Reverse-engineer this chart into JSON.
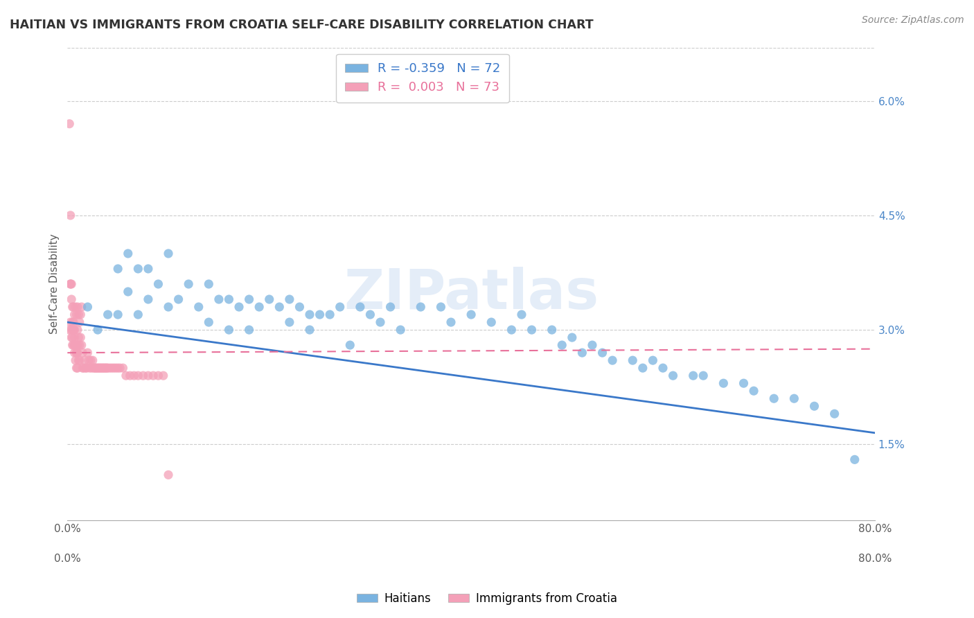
{
  "title": "HAITIAN VS IMMIGRANTS FROM CROATIA SELF-CARE DISABILITY CORRELATION CHART",
  "source": "Source: ZipAtlas.com",
  "ylabel": "Self-Care Disability",
  "right_yticks": [
    0.015,
    0.03,
    0.045,
    0.06
  ],
  "right_yticklabels": [
    "1.5%",
    "3.0%",
    "4.5%",
    "6.0%"
  ],
  "xlim": [
    0.0,
    0.8
  ],
  "ylim": [
    0.005,
    0.067
  ],
  "xticks": [
    0.0,
    0.1,
    0.2,
    0.3,
    0.4,
    0.5,
    0.6,
    0.7,
    0.8
  ],
  "xticklabels": [
    "0.0%",
    "",
    "",
    "",
    "",
    "",
    "",
    "",
    "80.0%"
  ],
  "legend_R_blue": "-0.359",
  "legend_N_blue": "72",
  "legend_R_pink": "0.003",
  "legend_N_pink": "73",
  "blue_color": "#7ab3e0",
  "pink_color": "#f4a0b8",
  "trend_blue_color": "#3a78c9",
  "trend_pink_color": "#e8709a",
  "watermark": "ZIPatlas",
  "blue_scatter_x": [
    0.02,
    0.03,
    0.04,
    0.05,
    0.05,
    0.06,
    0.06,
    0.07,
    0.07,
    0.08,
    0.08,
    0.09,
    0.1,
    0.1,
    0.11,
    0.12,
    0.13,
    0.14,
    0.14,
    0.15,
    0.16,
    0.16,
    0.17,
    0.18,
    0.18,
    0.19,
    0.2,
    0.21,
    0.22,
    0.22,
    0.23,
    0.24,
    0.24,
    0.25,
    0.26,
    0.27,
    0.28,
    0.29,
    0.3,
    0.31,
    0.32,
    0.33,
    0.35,
    0.37,
    0.38,
    0.4,
    0.42,
    0.44,
    0.45,
    0.46,
    0.48,
    0.49,
    0.5,
    0.51,
    0.52,
    0.53,
    0.54,
    0.56,
    0.57,
    0.58,
    0.59,
    0.6,
    0.62,
    0.63,
    0.65,
    0.67,
    0.68,
    0.7,
    0.72,
    0.74,
    0.76,
    0.78
  ],
  "blue_scatter_y": [
    0.033,
    0.03,
    0.032,
    0.038,
    0.032,
    0.04,
    0.035,
    0.038,
    0.032,
    0.038,
    0.034,
    0.036,
    0.04,
    0.033,
    0.034,
    0.036,
    0.033,
    0.036,
    0.031,
    0.034,
    0.034,
    0.03,
    0.033,
    0.034,
    0.03,
    0.033,
    0.034,
    0.033,
    0.034,
    0.031,
    0.033,
    0.032,
    0.03,
    0.032,
    0.032,
    0.033,
    0.028,
    0.033,
    0.032,
    0.031,
    0.033,
    0.03,
    0.033,
    0.033,
    0.031,
    0.032,
    0.031,
    0.03,
    0.032,
    0.03,
    0.03,
    0.028,
    0.029,
    0.027,
    0.028,
    0.027,
    0.026,
    0.026,
    0.025,
    0.026,
    0.025,
    0.024,
    0.024,
    0.024,
    0.023,
    0.023,
    0.022,
    0.021,
    0.021,
    0.02,
    0.019,
    0.013
  ],
  "pink_scatter_x": [
    0.002,
    0.002,
    0.003,
    0.003,
    0.004,
    0.004,
    0.005,
    0.005,
    0.006,
    0.006,
    0.006,
    0.007,
    0.007,
    0.007,
    0.008,
    0.008,
    0.009,
    0.009,
    0.01,
    0.01,
    0.01,
    0.011,
    0.011,
    0.012,
    0.012,
    0.013,
    0.013,
    0.014,
    0.014,
    0.015,
    0.015,
    0.016,
    0.017,
    0.018,
    0.019,
    0.02,
    0.021,
    0.022,
    0.023,
    0.024,
    0.025,
    0.026,
    0.027,
    0.028,
    0.029,
    0.03,
    0.031,
    0.032,
    0.033,
    0.034,
    0.035,
    0.036,
    0.037,
    0.038,
    0.039,
    0.04,
    0.042,
    0.044,
    0.046,
    0.048,
    0.05,
    0.052,
    0.055,
    0.058,
    0.062,
    0.066,
    0.07,
    0.075,
    0.08,
    0.085,
    0.09,
    0.095,
    0.1
  ],
  "pink_scatter_y": [
    0.057,
    0.03,
    0.036,
    0.031,
    0.034,
    0.029,
    0.033,
    0.028,
    0.033,
    0.031,
    0.03,
    0.032,
    0.03,
    0.028,
    0.033,
    0.028,
    0.032,
    0.027,
    0.033,
    0.03,
    0.028,
    0.032,
    0.029,
    0.031,
    0.028,
    0.032,
    0.029,
    0.028,
    0.033,
    0.027,
    0.025,
    0.025,
    0.026,
    0.025,
    0.025,
    0.027,
    0.026,
    0.025,
    0.026,
    0.025,
    0.026,
    0.025,
    0.025,
    0.025,
    0.025,
    0.025,
    0.025,
    0.025,
    0.025,
    0.025,
    0.025,
    0.025,
    0.025,
    0.025,
    0.025,
    0.025,
    0.025,
    0.025,
    0.025,
    0.025,
    0.025,
    0.025,
    0.025,
    0.024,
    0.024,
    0.024,
    0.024,
    0.024,
    0.024,
    0.024,
    0.024,
    0.024,
    0.011
  ],
  "pink_extra_x": [
    0.003,
    0.004,
    0.005,
    0.006,
    0.007,
    0.008,
    0.009,
    0.01,
    0.011,
    0.012,
    0.003,
    0.004,
    0.005,
    0.006,
    0.007,
    0.008,
    0.009,
    0.01
  ],
  "pink_extra_y": [
    0.045,
    0.036,
    0.031,
    0.03,
    0.029,
    0.028,
    0.027,
    0.027,
    0.026,
    0.026,
    0.036,
    0.03,
    0.029,
    0.028,
    0.027,
    0.026,
    0.025,
    0.025
  ],
  "blue_trend_x0": 0.0,
  "blue_trend_x1": 0.8,
  "blue_trend_y0": 0.031,
  "blue_trend_y1": 0.0165,
  "pink_trend_x0": 0.0,
  "pink_trend_x1": 0.8,
  "pink_trend_y0": 0.027,
  "pink_trend_y1": 0.0275
}
